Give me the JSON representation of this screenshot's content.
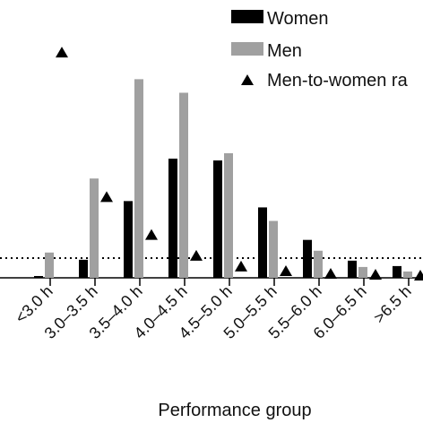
{
  "chart_data": {
    "type": "bar",
    "xlabel": "Performance group",
    "categories": [
      "<3.0 h",
      "3.0–3.5 h",
      "3.5–4.0 h",
      "4.0–4.5 h",
      "4.5–5.0 h",
      "5.0–5.5 h",
      "5.5–6.0 h",
      "6.0–6.5 h",
      ">6.5 h"
    ],
    "series": [
      {
        "name": "Women",
        "kind": "bar",
        "color": "#000000",
        "values": [
          0.2,
          2.0,
          8.5,
          13.2,
          13.0,
          7.8,
          4.2,
          1.9,
          1.3
        ]
      },
      {
        "name": "Men",
        "kind": "bar",
        "color": "#a0a0a0",
        "values": [
          2.8,
          11.0,
          22.0,
          20.5,
          13.8,
          6.3,
          3.0,
          1.2,
          0.7
        ]
      },
      {
        "name": "Men-to-women ra",
        "kind": "marker",
        "marker": "triangle",
        "color": "#000000",
        "values": [
          25.0,
          9.0,
          4.8,
          2.5,
          1.3,
          0.8,
          0.5,
          0.4,
          0.3
        ]
      }
    ],
    "ylim": [
      0,
      27
    ],
    "reference_line": {
      "style": "dotted",
      "value": 1.0
    },
    "grid": false,
    "legend": {
      "position": "top-right",
      "entries": [
        {
          "label": "Women",
          "symbol": "bar",
          "color": "#000000"
        },
        {
          "label": "Men",
          "symbol": "bar",
          "color": "#a0a0a0"
        },
        {
          "label": "Men-to-women ra",
          "symbol": "triangle",
          "color": "#000000"
        }
      ]
    }
  }
}
